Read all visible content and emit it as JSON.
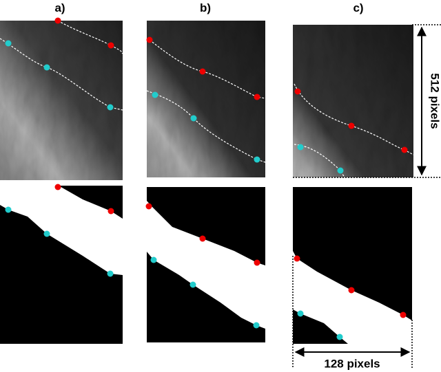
{
  "panels": [
    {
      "label": "a)"
    },
    {
      "label": "b)"
    },
    {
      "label": "c)"
    }
  ],
  "dimensions": {
    "height": "512 pixels",
    "width": "128 pixels"
  }
}
